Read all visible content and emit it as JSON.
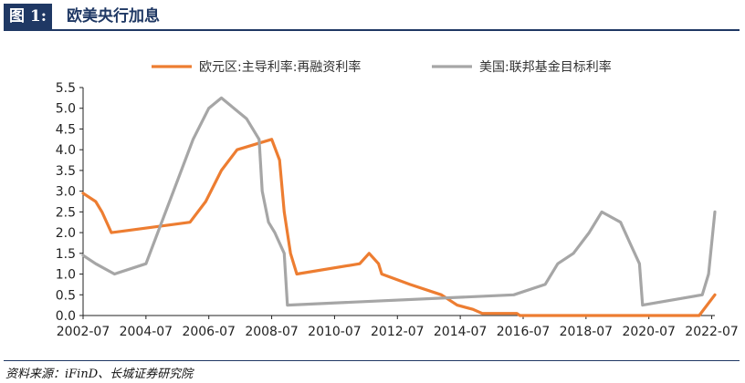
{
  "header": {
    "figure_label": "图 1:",
    "title": "欧美央行加息"
  },
  "source": "资料来源：iFinD、长城证券研究院",
  "colors": {
    "ecb": "#ed7d31",
    "fed": "#a6a6a6",
    "header_blue": "#1f3864"
  },
  "chart_data": {
    "type": "line",
    "title": "",
    "xlabel": "",
    "ylabel": "",
    "xlim": [
      2002.5,
      2022.6
    ],
    "ylim": [
      0,
      5.5
    ],
    "yticks": [
      "0.0",
      "0.5",
      "1.0",
      "1.5",
      "2.0",
      "2.5",
      "3.0",
      "3.5",
      "4.0",
      "4.5",
      "5.0",
      "5.5"
    ],
    "xticks": [
      "2002-07",
      "2004-07",
      "2006-07",
      "2008-07",
      "2010-07",
      "2012-07",
      "2014-07",
      "2016-07",
      "2018-07",
      "2020-07",
      "2022-07"
    ],
    "legend_position": "top",
    "grid": false,
    "series": [
      {
        "name": "欧元区:主导利率:再融资利率",
        "color": "#ed7d31",
        "points": [
          [
            2002.5,
            2.95
          ],
          [
            2002.9,
            2.75
          ],
          [
            2003.1,
            2.5
          ],
          [
            2003.4,
            2.0
          ],
          [
            2005.9,
            2.25
          ],
          [
            2006.4,
            2.75
          ],
          [
            2006.9,
            3.5
          ],
          [
            2007.4,
            4.0
          ],
          [
            2008.5,
            4.25
          ],
          [
            2008.75,
            3.75
          ],
          [
            2008.9,
            2.5
          ],
          [
            2009.1,
            1.5
          ],
          [
            2009.3,
            1.0
          ],
          [
            2011.3,
            1.25
          ],
          [
            2011.6,
            1.5
          ],
          [
            2011.9,
            1.25
          ],
          [
            2012.0,
            1.0
          ],
          [
            2012.9,
            0.75
          ],
          [
            2013.9,
            0.5
          ],
          [
            2014.4,
            0.25
          ],
          [
            2014.9,
            0.15
          ],
          [
            2015.2,
            0.05
          ],
          [
            2016.3,
            0.05
          ],
          [
            2016.4,
            0.0
          ],
          [
            2022.1,
            0.0
          ],
          [
            2022.6,
            0.5
          ]
        ]
      },
      {
        "name": "美国:联邦基金目标利率",
        "color": "#a6a6a6",
        "points": [
          [
            2002.5,
            1.45
          ],
          [
            2002.9,
            1.25
          ],
          [
            2003.5,
            1.0
          ],
          [
            2004.5,
            1.25
          ],
          [
            2005.0,
            2.25
          ],
          [
            2005.5,
            3.25
          ],
          [
            2006.0,
            4.25
          ],
          [
            2006.5,
            5.0
          ],
          [
            2006.9,
            5.25
          ],
          [
            2007.7,
            4.75
          ],
          [
            2008.1,
            4.25
          ],
          [
            2008.2,
            3.0
          ],
          [
            2008.4,
            2.25
          ],
          [
            2008.6,
            2.0
          ],
          [
            2008.9,
            1.5
          ],
          [
            2009.0,
            0.25
          ],
          [
            2016.2,
            0.5
          ],
          [
            2017.2,
            0.75
          ],
          [
            2017.6,
            1.25
          ],
          [
            2018.1,
            1.5
          ],
          [
            2018.6,
            2.0
          ],
          [
            2019.0,
            2.5
          ],
          [
            2019.6,
            2.25
          ],
          [
            2019.9,
            1.75
          ],
          [
            2020.2,
            1.25
          ],
          [
            2020.3,
            0.25
          ],
          [
            2022.2,
            0.5
          ],
          [
            2022.4,
            1.0
          ],
          [
            2022.6,
            2.5
          ]
        ]
      }
    ]
  }
}
